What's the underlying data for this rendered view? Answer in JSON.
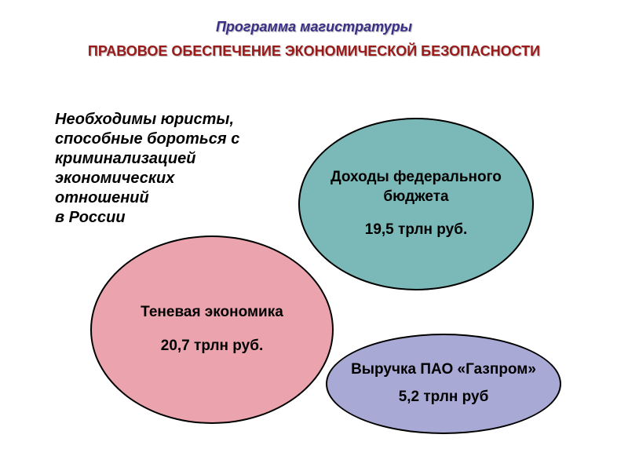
{
  "header": {
    "line1": "Программа магистратуры",
    "line2": "ПРАВОВОЕ ОБЕСПЕЧЕНИЕ ЭКОНОМИЧЕСКОЙ БЕЗОПАСНОСТИ",
    "line1_color": "#3a2f87",
    "line2_color": "#9a1a1a",
    "line1_fontsize": 18,
    "line2_fontsize": 18
  },
  "body_text": {
    "text": "Необходимы юристы, способные бороться с криминализацией экономических отношений\n в России",
    "fontsize": 20,
    "color": "#000000"
  },
  "bubbles": {
    "budget": {
      "label": "Доходы федерального бюджета",
      "value": "19,5 трлн руб.",
      "fill": "#7bb8b8",
      "fontsize": 19
    },
    "shadow_economy": {
      "label": "Теневая экономика",
      "value": "20,7 трлн руб.",
      "fill": "#eba4ad",
      "fontsize": 19
    },
    "gazprom": {
      "label": "Выручка ПАО «Газпром»",
      "value": "5,2 трлн руб",
      "fill": "#a9a9d6",
      "fontsize": 19
    }
  },
  "background_color": "#ffffff",
  "border_color": "#000000"
}
